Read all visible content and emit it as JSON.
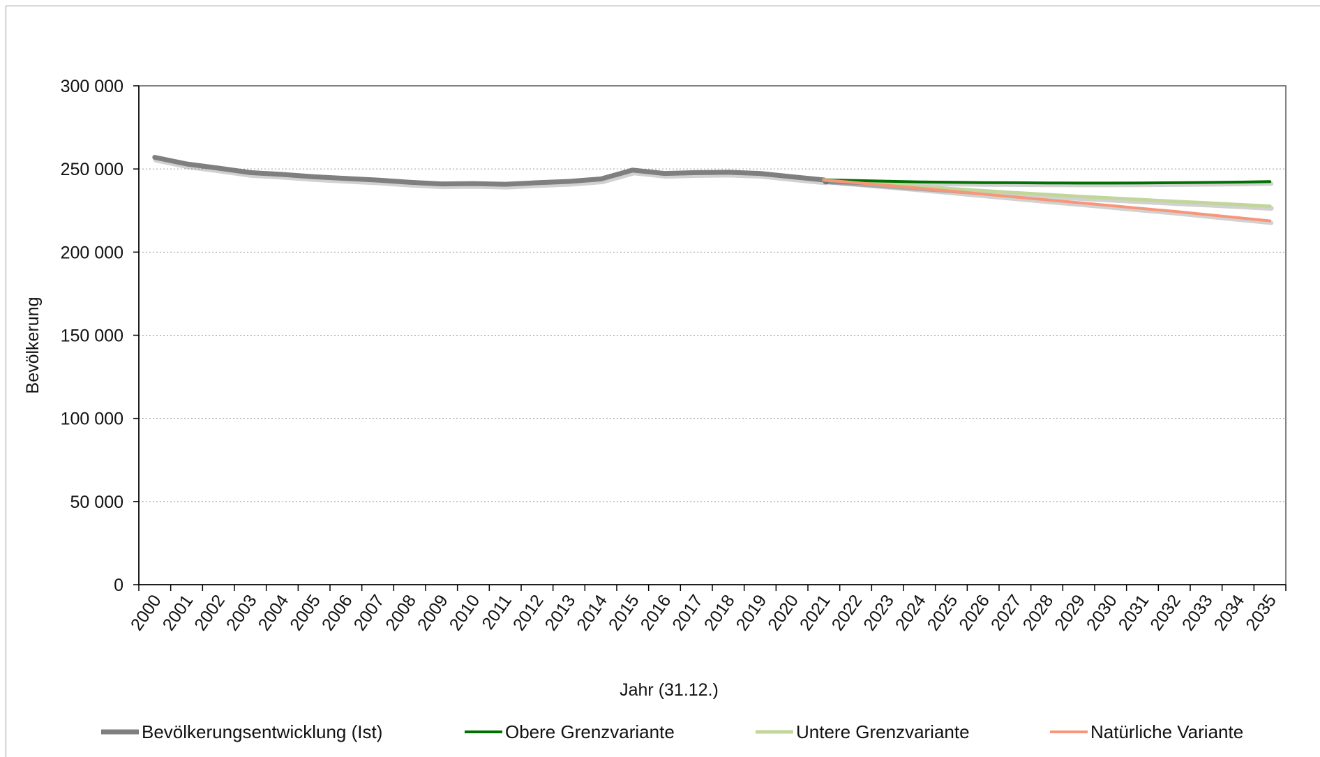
{
  "chart_data": {
    "type": "line",
    "title": "",
    "xlabel": "Jahr (31.12.)",
    "ylabel": "Bevölkerung",
    "ylim": [
      0,
      300000
    ],
    "yticks": [
      0,
      50000,
      100000,
      150000,
      200000,
      250000,
      300000
    ],
    "ytick_labels": [
      "0",
      "50 000",
      "100 000",
      "150 000",
      "200 000",
      "250 000",
      "300 000"
    ],
    "x": [
      2000,
      2001,
      2002,
      2003,
      2004,
      2005,
      2006,
      2007,
      2008,
      2009,
      2010,
      2011,
      2012,
      2013,
      2014,
      2015,
      2016,
      2017,
      2018,
      2019,
      2020,
      2021,
      2022,
      2023,
      2024,
      2025,
      2026,
      2027,
      2028,
      2029,
      2030,
      2031,
      2032,
      2033,
      2034,
      2035
    ],
    "x_labels": [
      "2000",
      "2001",
      "2002",
      "2003",
      "2004",
      "2005",
      "2006",
      "2007",
      "2008",
      "2009",
      "2010",
      "2011",
      "2012",
      "2013",
      "2014",
      "2015",
      "2016",
      "2017",
      "2018",
      "2019",
      "2020",
      "2021",
      "2022",
      "2023",
      "2024",
      "2025",
      "2026",
      "2027",
      "2028",
      "2029",
      "2030",
      "2031",
      "2032",
      "2033",
      "2034",
      "2035"
    ],
    "grid": "horizontal dotted",
    "legend_position": "bottom",
    "series": [
      {
        "name": "Bevölkerungsentwicklung (Ist)",
        "color": "#7f7f7f",
        "x": [
          2000,
          2001,
          2002,
          2003,
          2004,
          2005,
          2006,
          2007,
          2008,
          2009,
          2010,
          2011,
          2012,
          2013,
          2014,
          2015,
          2016,
          2017,
          2018,
          2019,
          2020,
          2021
        ],
        "values": [
          257000,
          253000,
          250500,
          247800,
          246700,
          245300,
          244300,
          243300,
          242000,
          241000,
          241200,
          240800,
          241700,
          242500,
          244000,
          249300,
          247300,
          247800,
          248000,
          247300,
          245300,
          243400
        ]
      },
      {
        "name": "Obere Grenzvariante",
        "color": "#007000",
        "x": [
          2021,
          2022,
          2023,
          2024,
          2025,
          2026,
          2027,
          2028,
          2029,
          2030,
          2031,
          2032,
          2033,
          2034,
          2035
        ],
        "values": [
          243500,
          243000,
          242600,
          242200,
          242000,
          241800,
          241700,
          241600,
          241500,
          241500,
          241600,
          241700,
          241900,
          242100,
          242400
        ]
      },
      {
        "name": "Untere Grenzvariante",
        "color": "#c2d69b",
        "x": [
          2021,
          2022,
          2023,
          2024,
          2025,
          2026,
          2027,
          2028,
          2029,
          2030,
          2031,
          2032,
          2033,
          2034,
          2035
        ],
        "values": [
          243500,
          242200,
          240800,
          239400,
          238100,
          236900,
          235700,
          234600,
          233500,
          232500,
          231500,
          230500,
          229600,
          228600,
          227600
        ]
      },
      {
        "name": "Natürliche Variante",
        "color": "#f79679",
        "x": [
          2021,
          2022,
          2023,
          2024,
          2025,
          2026,
          2027,
          2028,
          2029,
          2030,
          2031,
          2032,
          2033,
          2034,
          2035
        ],
        "values": [
          243500,
          241800,
          240100,
          238400,
          236700,
          234900,
          233200,
          231400,
          229700,
          228000,
          226200,
          224500,
          222600,
          220700,
          218800
        ]
      }
    ]
  }
}
